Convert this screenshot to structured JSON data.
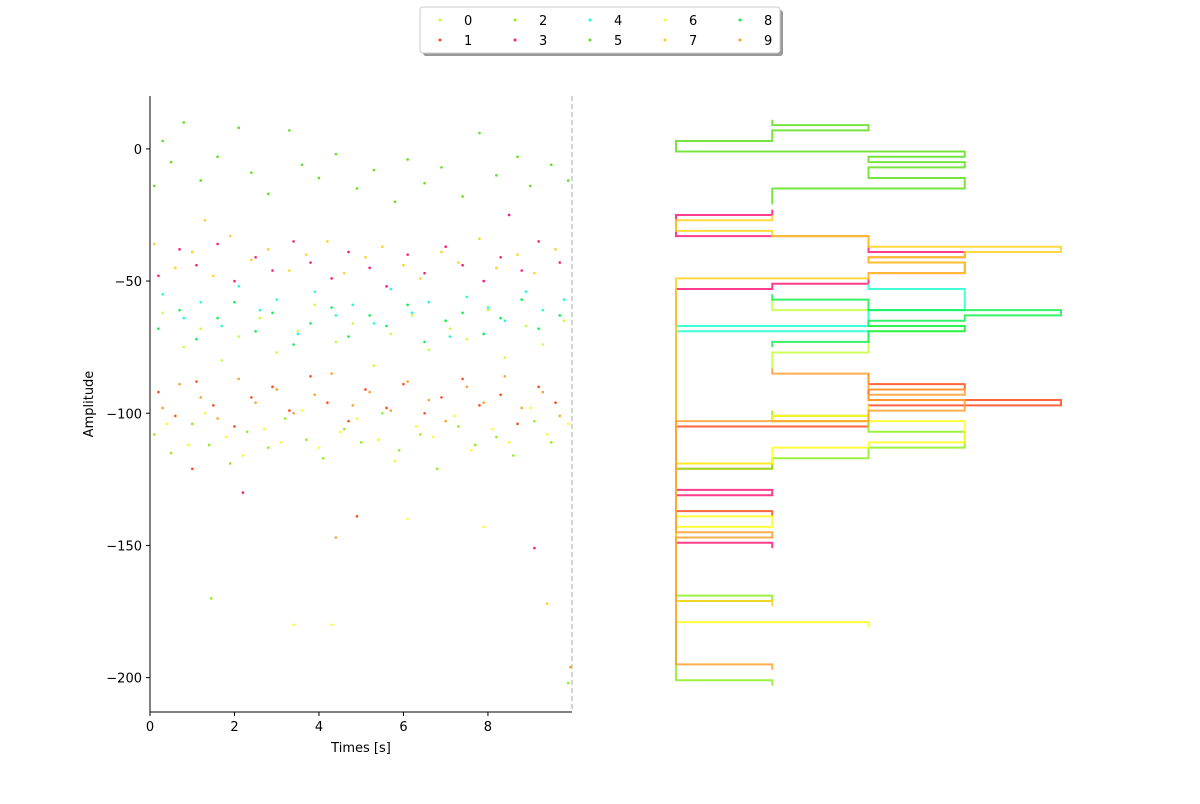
{
  "chart_data": {
    "type": "scatter",
    "xlabel": "Times [s]",
    "ylabel": "Amplitude",
    "xlim": [
      0,
      9.99
    ],
    "ylim": [
      -213,
      20
    ],
    "xticks": [
      "0",
      "2",
      "4",
      "6",
      "8"
    ],
    "yticks": [
      "0",
      "−50",
      "−100",
      "−150",
      "−200"
    ],
    "grid": false,
    "legend": {
      "placement": "top-center",
      "columns": 5
    },
    "marginal": {
      "type": "step-histogram",
      "orientation": "horizontal",
      "shared_axis": "y",
      "bin_width": 2
    },
    "series": [
      {
        "name": "0",
        "color": "#c6ff3c",
        "points": [
          [
            0.3,
            -62
          ],
          [
            0.8,
            -75
          ],
          [
            1.2,
            -68
          ],
          [
            1.7,
            -80
          ],
          [
            2.1,
            -71
          ],
          [
            2.6,
            -64
          ],
          [
            3.0,
            -77
          ],
          [
            3.5,
            -69
          ],
          [
            3.9,
            -59
          ],
          [
            4.4,
            -73
          ],
          [
            4.8,
            -66
          ],
          [
            5.3,
            -82
          ],
          [
            5.7,
            -70
          ],
          [
            6.2,
            -63
          ],
          [
            6.6,
            -76
          ],
          [
            7.1,
            -68
          ],
          [
            7.5,
            -72
          ],
          [
            8.0,
            -61
          ],
          [
            8.4,
            -79
          ],
          [
            8.9,
            -67
          ],
          [
            9.3,
            -74
          ],
          [
            9.8,
            -65
          ]
        ]
      },
      {
        "name": "1",
        "color": "#ff4a1c",
        "points": [
          [
            0.2,
            -92
          ],
          [
            0.6,
            -101
          ],
          [
            1.1,
            -88
          ],
          [
            1.5,
            -97
          ],
          [
            2.0,
            -105
          ],
          [
            2.4,
            -94
          ],
          [
            2.9,
            -90
          ],
          [
            3.3,
            -99
          ],
          [
            3.8,
            -86
          ],
          [
            4.2,
            -96
          ],
          [
            4.7,
            -103
          ],
          [
            5.1,
            -91
          ],
          [
            5.6,
            -98
          ],
          [
            6.0,
            -89
          ],
          [
            6.5,
            -100
          ],
          [
            6.9,
            -94
          ],
          [
            7.4,
            -87
          ],
          [
            7.8,
            -97
          ],
          [
            8.3,
            -93
          ],
          [
            8.7,
            -104
          ],
          [
            9.2,
            -90
          ],
          [
            9.6,
            -96
          ],
          [
            4.9,
            -139
          ],
          [
            1.0,
            -121
          ]
        ]
      },
      {
        "name": "2",
        "color": "#8cf020",
        "points": [
          [
            0.1,
            -108
          ],
          [
            0.5,
            -115
          ],
          [
            1.0,
            -104
          ],
          [
            1.4,
            -112
          ],
          [
            1.9,
            -119
          ],
          [
            2.3,
            -107
          ],
          [
            2.8,
            -113
          ],
          [
            3.2,
            -102
          ],
          [
            3.7,
            -110
          ],
          [
            4.1,
            -117
          ],
          [
            4.6,
            -106
          ],
          [
            5.0,
            -111
          ],
          [
            5.5,
            -100
          ],
          [
            5.9,
            -114
          ],
          [
            6.4,
            -108
          ],
          [
            6.8,
            -121
          ],
          [
            7.3,
            -105
          ],
          [
            7.7,
            -112
          ],
          [
            8.2,
            -109
          ],
          [
            8.6,
            -116
          ],
          [
            9.1,
            -103
          ],
          [
            9.5,
            -111
          ],
          [
            1.45,
            -170
          ],
          [
            9.9,
            -202
          ]
        ]
      },
      {
        "name": "3",
        "color": "#ff1a7a",
        "points": [
          [
            0.2,
            -48
          ],
          [
            0.7,
            -38
          ],
          [
            1.1,
            -44
          ],
          [
            1.6,
            -36
          ],
          [
            2.0,
            -50
          ],
          [
            2.5,
            -41
          ],
          [
            2.9,
            -46
          ],
          [
            3.4,
            -35
          ],
          [
            3.8,
            -43
          ],
          [
            4.3,
            -49
          ],
          [
            4.7,
            -39
          ],
          [
            5.2,
            -45
          ],
          [
            5.6,
            -52
          ],
          [
            6.1,
            -40
          ],
          [
            6.5,
            -47
          ],
          [
            7.0,
            -37
          ],
          [
            7.4,
            -44
          ],
          [
            7.9,
            -50
          ],
          [
            8.3,
            -41
          ],
          [
            8.8,
            -46
          ],
          [
            9.2,
            -35
          ],
          [
            9.7,
            -43
          ],
          [
            8.5,
            -25
          ],
          [
            2.2,
            -130
          ],
          [
            9.1,
            -151
          ]
        ]
      },
      {
        "name": "4",
        "color": "#20ffd0",
        "points": [
          [
            0.3,
            -55
          ],
          [
            0.8,
            -64
          ],
          [
            1.2,
            -58
          ],
          [
            1.7,
            -67
          ],
          [
            2.1,
            -52
          ],
          [
            2.6,
            -61
          ],
          [
            3.0,
            -57
          ],
          [
            3.5,
            -70
          ],
          [
            3.9,
            -54
          ],
          [
            4.4,
            -63
          ],
          [
            4.8,
            -59
          ],
          [
            5.3,
            -66
          ],
          [
            5.7,
            -53
          ],
          [
            6.2,
            -62
          ],
          [
            6.6,
            -58
          ],
          [
            7.1,
            -71
          ],
          [
            7.5,
            -56
          ],
          [
            8.0,
            -60
          ],
          [
            8.4,
            -65
          ],
          [
            8.9,
            -54
          ],
          [
            9.3,
            -61
          ],
          [
            9.8,
            -57
          ]
        ]
      },
      {
        "name": "5",
        "color": "#5ee01e",
        "points": [
          [
            0.1,
            -14
          ],
          [
            0.5,
            -5
          ],
          [
            0.8,
            10
          ],
          [
            1.2,
            -12
          ],
          [
            1.6,
            -3
          ],
          [
            2.1,
            8
          ],
          [
            2.4,
            -9
          ],
          [
            2.8,
            -17
          ],
          [
            3.3,
            7
          ],
          [
            3.6,
            -6
          ],
          [
            4.0,
            -11
          ],
          [
            4.4,
            -2
          ],
          [
            4.9,
            -15
          ],
          [
            5.3,
            -8
          ],
          [
            5.8,
            -20
          ],
          [
            6.1,
            -4
          ],
          [
            6.5,
            -13
          ],
          [
            6.9,
            -7
          ],
          [
            7.4,
            -18
          ],
          [
            7.8,
            6
          ],
          [
            8.2,
            -10
          ],
          [
            8.7,
            -3
          ],
          [
            9.0,
            -14
          ],
          [
            9.5,
            -6
          ],
          [
            9.9,
            -12
          ],
          [
            0.3,
            3
          ]
        ]
      },
      {
        "name": "6",
        "color": "#ffff20",
        "points": [
          [
            0.4,
            -104
          ],
          [
            0.9,
            -112
          ],
          [
            1.3,
            -100
          ],
          [
            1.8,
            -109
          ],
          [
            2.2,
            -116
          ],
          [
            2.7,
            -106
          ],
          [
            3.1,
            -111
          ],
          [
            3.6,
            -99
          ],
          [
            4.0,
            -113
          ],
          [
            4.5,
            -107
          ],
          [
            4.9,
            -102
          ],
          [
            5.4,
            -110
          ],
          [
            5.8,
            -118
          ],
          [
            6.3,
            -105
          ],
          [
            6.7,
            -109
          ],
          [
            7.2,
            -101
          ],
          [
            7.6,
            -114
          ],
          [
            8.1,
            -106
          ],
          [
            8.5,
            -111
          ],
          [
            9.0,
            -98
          ],
          [
            9.4,
            -108
          ],
          [
            9.9,
            -104
          ],
          [
            3.4,
            -180
          ],
          [
            4.3,
            -180
          ],
          [
            6.1,
            -140
          ],
          [
            7.9,
            -143
          ]
        ]
      },
      {
        "name": "7",
        "color": "#ffd21e",
        "points": [
          [
            0.1,
            -36
          ],
          [
            0.6,
            -45
          ],
          [
            1.0,
            -39
          ],
          [
            1.5,
            -48
          ],
          [
            1.9,
            -33
          ],
          [
            2.4,
            -42
          ],
          [
            2.8,
            -38
          ],
          [
            3.3,
            -46
          ],
          [
            3.7,
            -40
          ],
          [
            4.2,
            -35
          ],
          [
            4.6,
            -47
          ],
          [
            5.1,
            -41
          ],
          [
            5.5,
            -37
          ],
          [
            6.0,
            -44
          ],
          [
            6.4,
            -49
          ],
          [
            6.9,
            -39
          ],
          [
            7.3,
            -43
          ],
          [
            7.8,
            -34
          ],
          [
            8.2,
            -45
          ],
          [
            8.7,
            -40
          ],
          [
            9.1,
            -47
          ],
          [
            9.6,
            -38
          ],
          [
            1.3,
            -27
          ],
          [
            9.4,
            -172
          ]
        ]
      },
      {
        "name": "8",
        "color": "#10f050",
        "points": [
          [
            0.2,
            -68
          ],
          [
            0.7,
            -61
          ],
          [
            1.1,
            -72
          ],
          [
            1.6,
            -64
          ],
          [
            2.0,
            -58
          ],
          [
            2.5,
            -69
          ],
          [
            2.9,
            -62
          ],
          [
            3.4,
            -74
          ],
          [
            3.8,
            -66
          ],
          [
            4.3,
            -60
          ],
          [
            4.7,
            -71
          ],
          [
            5.2,
            -63
          ],
          [
            5.6,
            -67
          ],
          [
            6.1,
            -59
          ],
          [
            6.5,
            -73
          ],
          [
            7.0,
            -65
          ],
          [
            7.4,
            -62
          ],
          [
            7.9,
            -70
          ],
          [
            8.3,
            -64
          ],
          [
            8.8,
            -57
          ],
          [
            9.2,
            -68
          ],
          [
            9.7,
            -63
          ]
        ]
      },
      {
        "name": "9",
        "color": "#ffa030",
        "points": [
          [
            0.3,
            -98
          ],
          [
            0.7,
            -89
          ],
          [
            1.2,
            -94
          ],
          [
            1.6,
            -102
          ],
          [
            2.1,
            -87
          ],
          [
            2.5,
            -96
          ],
          [
            3.0,
            -91
          ],
          [
            3.4,
            -100
          ],
          [
            3.9,
            -93
          ],
          [
            4.3,
            -85
          ],
          [
            4.8,
            -97
          ],
          [
            5.2,
            -92
          ],
          [
            5.7,
            -99
          ],
          [
            6.1,
            -88
          ],
          [
            6.6,
            -95
          ],
          [
            7.0,
            -103
          ],
          [
            7.5,
            -90
          ],
          [
            7.9,
            -96
          ],
          [
            8.4,
            -86
          ],
          [
            8.8,
            -98
          ],
          [
            9.3,
            -92
          ],
          [
            9.7,
            -101
          ],
          [
            4.4,
            -147
          ],
          [
            9.95,
            -196
          ]
        ]
      }
    ]
  }
}
